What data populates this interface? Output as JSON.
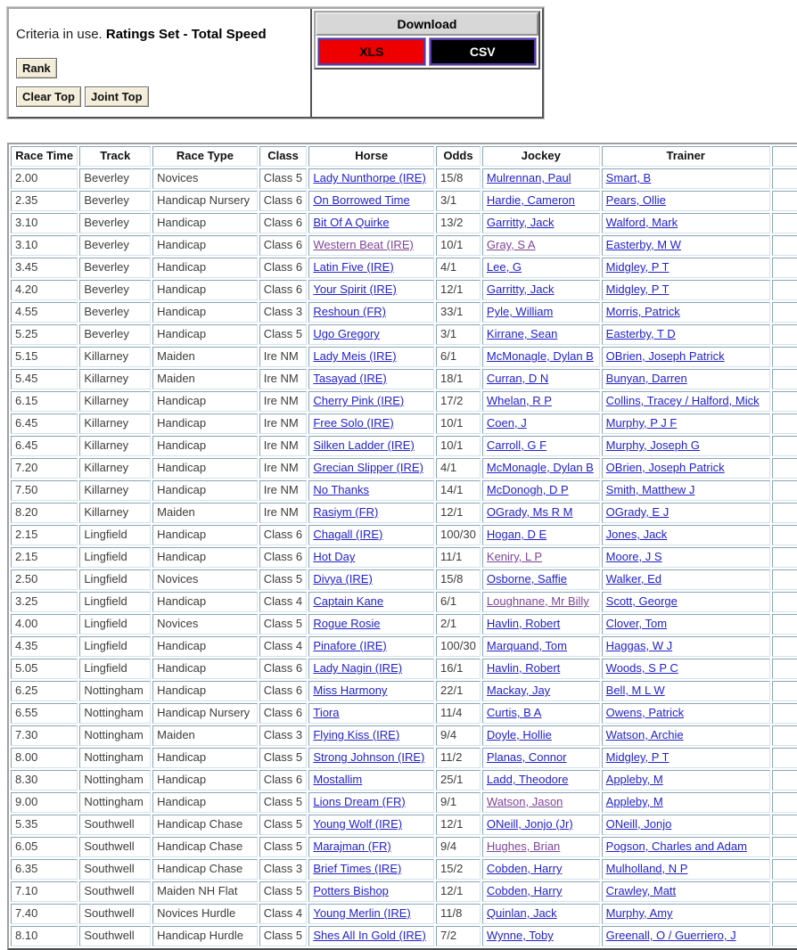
{
  "top": {
    "criteria_prefix": "Criteria in use. ",
    "criteria_bold": "Ratings Set - Total Speed",
    "rank_button": "Rank",
    "clear_top_button": "Clear Top",
    "joint_top_button": "Joint Top",
    "download": {
      "title": "Download",
      "xls_label": "XLS",
      "csv_label": "CSV",
      "xls_bg": "#ee0000",
      "xls_text": "#000000",
      "csv_bg": "#000000",
      "csv_text": "#ffffff",
      "button_border": "#5b35b8"
    }
  },
  "colors": {
    "link": "#2222cc",
    "visited_link": "#7d4698",
    "cell_border": "#8aa5b8"
  },
  "table": {
    "headers": [
      "Race Time",
      "Track",
      "Race Type",
      "Class",
      "Horse",
      "Odds",
      "Jockey",
      "Trainer"
    ],
    "rows": [
      {
        "time": "2.00",
        "track": "Beverley",
        "type": "Novices",
        "cls": "Class 5",
        "horse": "Lady Nunthorpe (IRE)",
        "odds": "15/8",
        "jockey": "Mulrennan, Paul",
        "trainer": "Smart, B",
        "visited": []
      },
      {
        "time": "2.35",
        "track": "Beverley",
        "type": "Handicap Nursery",
        "cls": "Class 6",
        "horse": "On Borrowed Time",
        "odds": "3/1",
        "jockey": "Hardie, Cameron",
        "trainer": "Pears, Ollie",
        "visited": []
      },
      {
        "time": "3.10",
        "track": "Beverley",
        "type": "Handicap",
        "cls": "Class 6",
        "horse": "Bit Of A Quirke",
        "odds": "13/2",
        "jockey": "Garritty, Jack",
        "trainer": "Walford, Mark",
        "visited": []
      },
      {
        "time": "3.10",
        "track": "Beverley",
        "type": "Handicap",
        "cls": "Class 6",
        "horse": "Western Beat (IRE)",
        "odds": "10/1",
        "jockey": "Gray, S A",
        "trainer": "Easterby, M W",
        "visited": [
          "horse",
          "jockey"
        ]
      },
      {
        "time": "3.45",
        "track": "Beverley",
        "type": "Handicap",
        "cls": "Class 6",
        "horse": "Latin Five (IRE)",
        "odds": "4/1",
        "jockey": "Lee, G",
        "trainer": "Midgley, P T",
        "visited": []
      },
      {
        "time": "4.20",
        "track": "Beverley",
        "type": "Handicap",
        "cls": "Class 6",
        "horse": "Your Spirit (IRE)",
        "odds": "12/1",
        "jockey": "Garritty, Jack",
        "trainer": "Midgley, P T",
        "visited": []
      },
      {
        "time": "4.55",
        "track": "Beverley",
        "type": "Handicap",
        "cls": "Class 3",
        "horse": "Reshoun (FR)",
        "odds": "33/1",
        "jockey": "Pyle, William",
        "trainer": "Morris, Patrick",
        "visited": []
      },
      {
        "time": "5.25",
        "track": "Beverley",
        "type": "Handicap",
        "cls": "Class 5",
        "horse": "Ugo Gregory",
        "odds": "3/1",
        "jockey": "Kirrane, Sean",
        "trainer": "Easterby, T D",
        "visited": []
      },
      {
        "time": "5.15",
        "track": "Killarney",
        "type": "Maiden",
        "cls": "Ire NM",
        "horse": "Lady Meis (IRE)",
        "odds": "6/1",
        "jockey": "McMonagle, Dylan B",
        "trainer": "OBrien, Joseph Patrick",
        "visited": []
      },
      {
        "time": "5.45",
        "track": "Killarney",
        "type": "Maiden",
        "cls": "Ire NM",
        "horse": "Tasayad (IRE)",
        "odds": "18/1",
        "jockey": "Curran, D N",
        "trainer": "Bunyan, Darren",
        "visited": []
      },
      {
        "time": "6.15",
        "track": "Killarney",
        "type": "Handicap",
        "cls": "Ire NM",
        "horse": "Cherry Pink (IRE)",
        "odds": "17/2",
        "jockey": "Whelan, R P",
        "trainer": "Collins, Tracey / Halford, Mick",
        "visited": []
      },
      {
        "time": "6.45",
        "track": "Killarney",
        "type": "Handicap",
        "cls": "Ire NM",
        "horse": "Free Solo (IRE)",
        "odds": "10/1",
        "jockey": "Coen, J",
        "trainer": "Murphy, P J F",
        "visited": []
      },
      {
        "time": "6.45",
        "track": "Killarney",
        "type": "Handicap",
        "cls": "Ire NM",
        "horse": "Silken Ladder (IRE)",
        "odds": "10/1",
        "jockey": "Carroll, G F",
        "trainer": "Murphy, Joseph G",
        "visited": []
      },
      {
        "time": "7.20",
        "track": "Killarney",
        "type": "Handicap",
        "cls": "Ire NM",
        "horse": "Grecian Slipper (IRE)",
        "odds": "4/1",
        "jockey": "McMonagle, Dylan B",
        "trainer": "OBrien, Joseph Patrick",
        "visited": []
      },
      {
        "time": "7.50",
        "track": "Killarney",
        "type": "Handicap",
        "cls": "Ire NM",
        "horse": "No Thanks",
        "odds": "14/1",
        "jockey": "McDonogh, D P",
        "trainer": "Smith, Matthew J",
        "visited": []
      },
      {
        "time": "8.20",
        "track": "Killarney",
        "type": "Maiden",
        "cls": "Ire NM",
        "horse": "Rasiym (FR)",
        "odds": "12/1",
        "jockey": "OGrady, Ms R M",
        "trainer": "OGrady, E J",
        "visited": []
      },
      {
        "time": "2.15",
        "track": "Lingfield",
        "type": "Handicap",
        "cls": "Class 6",
        "horse": "Chagall (IRE)",
        "odds": "100/30",
        "jockey": "Hogan, D E",
        "trainer": "Jones, Jack",
        "visited": []
      },
      {
        "time": "2.15",
        "track": "Lingfield",
        "type": "Handicap",
        "cls": "Class 6",
        "horse": "Hot Day",
        "odds": "11/1",
        "jockey": "Keniry, L P",
        "trainer": "Moore, J S",
        "visited": [
          "jockey"
        ]
      },
      {
        "time": "2.50",
        "track": "Lingfield",
        "type": "Novices",
        "cls": "Class 5",
        "horse": "Divya (IRE)",
        "odds": "15/8",
        "jockey": "Osborne, Saffie",
        "trainer": "Walker, Ed",
        "visited": []
      },
      {
        "time": "3.25",
        "track": "Lingfield",
        "type": "Handicap",
        "cls": "Class 4",
        "horse": "Captain Kane",
        "odds": "6/1",
        "jockey": "Loughnane, Mr Billy",
        "trainer": "Scott, George",
        "visited": [
          "jockey"
        ]
      },
      {
        "time": "4.00",
        "track": "Lingfield",
        "type": "Novices",
        "cls": "Class 5",
        "horse": "Rogue Rosie",
        "odds": "2/1",
        "jockey": "Havlin, Robert",
        "trainer": "Clover, Tom",
        "visited": []
      },
      {
        "time": "4.35",
        "track": "Lingfield",
        "type": "Handicap",
        "cls": "Class 4",
        "horse": "Pinafore (IRE)",
        "odds": "100/30",
        "jockey": "Marquand, Tom",
        "trainer": "Haggas, W J",
        "visited": []
      },
      {
        "time": "5.05",
        "track": "Lingfield",
        "type": "Handicap",
        "cls": "Class 6",
        "horse": "Lady Nagin (IRE)",
        "odds": "16/1",
        "jockey": "Havlin, Robert",
        "trainer": "Woods, S P C",
        "visited": []
      },
      {
        "time": "6.25",
        "track": "Nottingham",
        "type": "Handicap",
        "cls": "Class 6",
        "horse": "Miss Harmony",
        "odds": "22/1",
        "jockey": "Mackay, Jay",
        "trainer": "Bell, M L W",
        "visited": []
      },
      {
        "time": "6.55",
        "track": "Nottingham",
        "type": "Handicap Nursery",
        "cls": "Class 6",
        "horse": "Tiora",
        "odds": "11/4",
        "jockey": "Curtis, B A",
        "trainer": "Owens, Patrick",
        "visited": []
      },
      {
        "time": "7.30",
        "track": "Nottingham",
        "type": "Maiden",
        "cls": "Class 3",
        "horse": "Flying Kiss (IRE)",
        "odds": "9/4",
        "jockey": "Doyle, Hollie",
        "trainer": "Watson, Archie",
        "visited": []
      },
      {
        "time": "8.00",
        "track": "Nottingham",
        "type": "Handicap",
        "cls": "Class 5",
        "horse": "Strong Johnson (IRE)",
        "odds": "11/2",
        "jockey": "Planas, Connor",
        "trainer": "Midgley, P T",
        "visited": []
      },
      {
        "time": "8.30",
        "track": "Nottingham",
        "type": "Handicap",
        "cls": "Class 6",
        "horse": "Mostallim",
        "odds": "25/1",
        "jockey": "Ladd, Theodore",
        "trainer": "Appleby, M",
        "visited": []
      },
      {
        "time": "9.00",
        "track": "Nottingham",
        "type": "Handicap",
        "cls": "Class 5",
        "horse": "Lions Dream (FR)",
        "odds": "9/1",
        "jockey": "Watson, Jason",
        "trainer": "Appleby, M",
        "visited": [
          "jockey"
        ]
      },
      {
        "time": "5.35",
        "track": "Southwell",
        "type": "Handicap Chase",
        "cls": "Class 5",
        "horse": "Young Wolf (IRE)",
        "odds": "12/1",
        "jockey": "ONeill, Jonjo (Jr)",
        "trainer": "ONeill, Jonjo",
        "visited": []
      },
      {
        "time": "6.05",
        "track": "Southwell",
        "type": "Handicap Chase",
        "cls": "Class 5",
        "horse": "Marajman (FR)",
        "odds": "9/4",
        "jockey": "Hughes, Brian",
        "trainer": "Pogson, Charles and Adam",
        "visited": [
          "jockey"
        ]
      },
      {
        "time": "6.35",
        "track": "Southwell",
        "type": "Handicap Chase",
        "cls": "Class 3",
        "horse": "Brief Times (IRE)",
        "odds": "15/2",
        "jockey": "Cobden, Harry",
        "trainer": "Mulholland, N P",
        "visited": []
      },
      {
        "time": "7.10",
        "track": "Southwell",
        "type": "Maiden NH Flat",
        "cls": "Class 5",
        "horse": "Potters Bishop",
        "odds": "12/1",
        "jockey": "Cobden, Harry",
        "trainer": "Crawley, Matt",
        "visited": []
      },
      {
        "time": "7.40",
        "track": "Southwell",
        "type": "Novices Hurdle",
        "cls": "Class 4",
        "horse": "Young Merlin (IRE)",
        "odds": "11/8",
        "jockey": "Quinlan, Jack",
        "trainer": "Murphy, Amy",
        "visited": []
      },
      {
        "time": "8.10",
        "track": "Southwell",
        "type": "Handicap Hurdle",
        "cls": "Class 5",
        "horse": "Shes All In Gold (IRE)",
        "odds": "7/2",
        "jockey": "Wynne, Toby",
        "trainer": "Greenall, O / Guerriero, J",
        "visited": []
      }
    ]
  }
}
